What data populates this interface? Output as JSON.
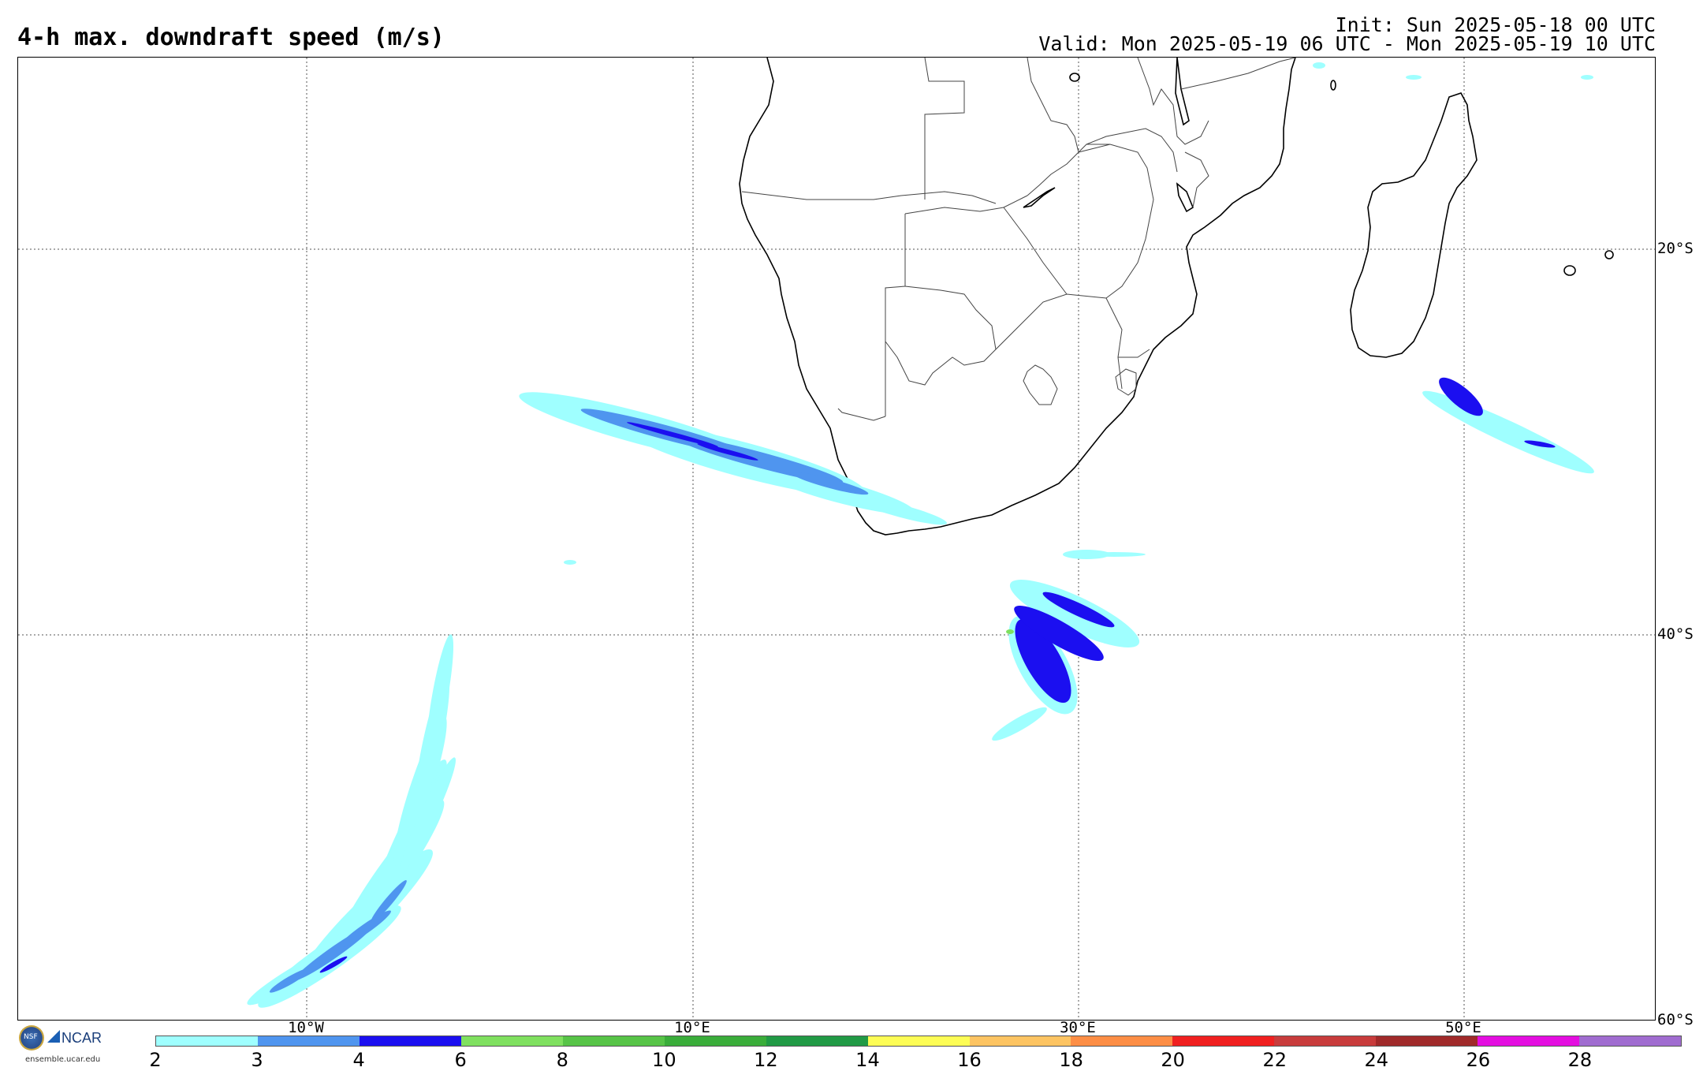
{
  "header": {
    "title": "4-h max. downdraft speed (m/s)",
    "init": "Init: Sun 2025-05-18 00 UTC",
    "valid": "Valid: Mon 2025-05-19 06 UTC - Mon 2025-05-19 10 UTC"
  },
  "map": {
    "lat_labels": [
      "20°S",
      "40°S",
      "60°S"
    ],
    "lon_labels": [
      "10°W",
      "10°E",
      "30°E",
      "50°E"
    ],
    "gridlines": "dotted",
    "region": "Southern Africa and South Atlantic"
  },
  "colorbar": {
    "ticks": [
      "2",
      "3",
      "4",
      "6",
      "8",
      "10",
      "12",
      "14",
      "16",
      "18",
      "20",
      "22",
      "24",
      "26",
      "28"
    ],
    "colors": [
      "#9fffff",
      "#4f95ef",
      "#1b0ff0",
      "#7fe05f",
      "#57c447",
      "#3aad3a",
      "#219a45",
      "#fdfd55",
      "#fdc462",
      "#fd8e45",
      "#f02020",
      "#c83c3c",
      "#a02a2a",
      "#e40ee0",
      "#a06cd0"
    ]
  },
  "logos": {
    "nsf": "NSF",
    "ncar": "NCAR",
    "url": "ensemble.ucar.edu"
  }
}
